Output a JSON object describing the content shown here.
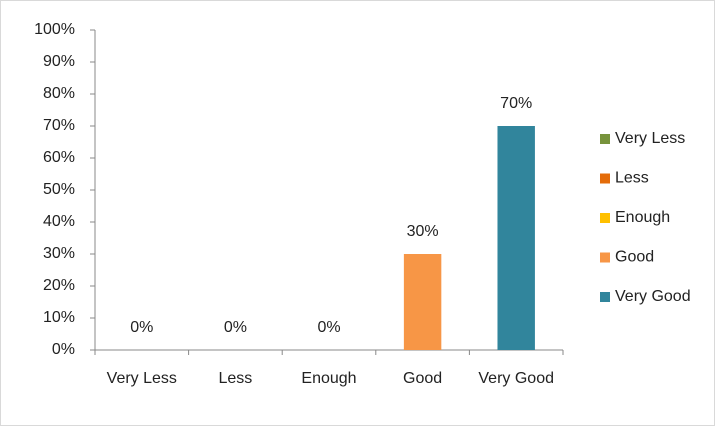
{
  "chart_data": {
    "type": "bar",
    "categories": [
      "Very Less",
      "Less",
      "Enough",
      "Good",
      "Very Good"
    ],
    "values": [
      0,
      0,
      0,
      30,
      70
    ],
    "value_labels": [
      "0%",
      "0%",
      "0%",
      "30%",
      "70%"
    ],
    "colors": [
      "#77933c",
      "#e46c0a",
      "#ffc000",
      "#f79646",
      "#31859c"
    ],
    "ylim": [
      0,
      100
    ],
    "yticks": [
      {
        "value": 0,
        "label": "0%"
      },
      {
        "value": 10,
        "label": "10%"
      },
      {
        "value": 20,
        "label": "20%"
      },
      {
        "value": 30,
        "label": "30%"
      },
      {
        "value": 40,
        "label": "40%"
      },
      {
        "value": 50,
        "label": "50%"
      },
      {
        "value": 60,
        "label": "60%"
      },
      {
        "value": 70,
        "label": "70%"
      },
      {
        "value": 80,
        "label": "80%"
      },
      {
        "value": 90,
        "label": "90%"
      },
      {
        "value": 100,
        "label": "100%"
      }
    ],
    "grid": false,
    "legend": "right"
  }
}
